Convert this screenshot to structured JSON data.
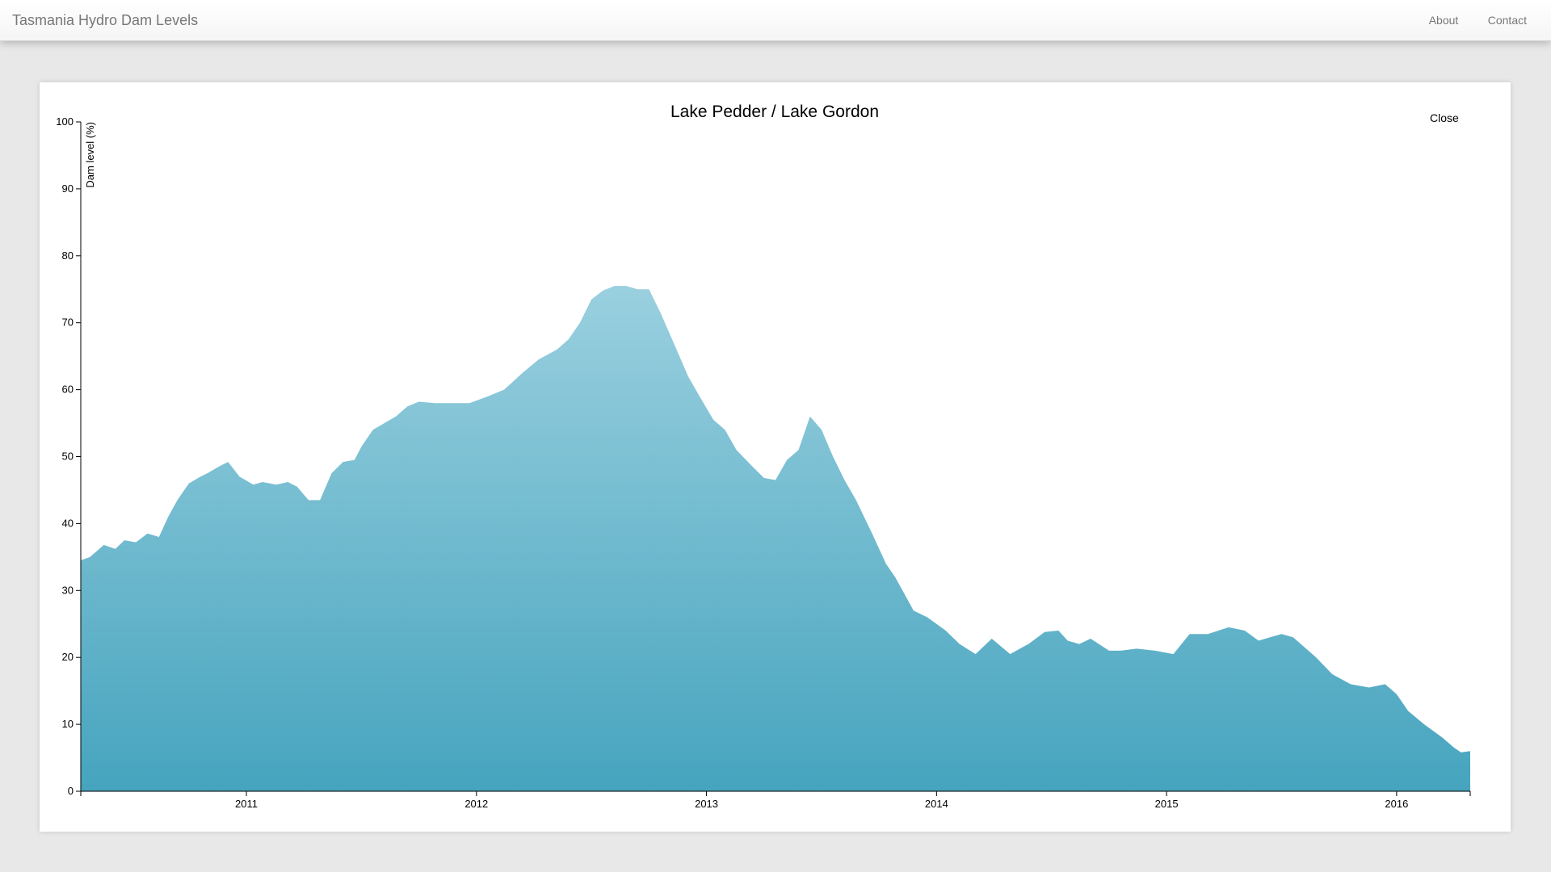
{
  "navbar": {
    "brand": "Tasmania Hydro Dam Levels",
    "links": [
      "About",
      "Contact"
    ]
  },
  "modal": {
    "close_label": "Close"
  },
  "colors": {
    "area_top": "#9ad0df",
    "area_bottom": "#46a4be",
    "axis": "#000000"
  },
  "chart_data": {
    "type": "area",
    "title": "Lake Pedder / Lake Gordon",
    "ylabel": "Dam level (%)",
    "xlabel": "",
    "ylim": [
      0,
      100
    ],
    "yticks": [
      0,
      10,
      20,
      30,
      40,
      50,
      60,
      70,
      80,
      90,
      100
    ],
    "xlim": [
      2010.28,
      2016.32
    ],
    "xticks": [
      2011,
      2012,
      2013,
      2014,
      2015,
      2016
    ],
    "xtick_labels": [
      "2011",
      "2012",
      "2013",
      "2014",
      "2015",
      "2016"
    ],
    "grid": false,
    "series": [
      {
        "x": [
          2010.28,
          2010.32,
          2010.38,
          2010.43,
          2010.47,
          2010.52,
          2010.57,
          2010.62,
          2010.66,
          2010.7,
          2010.75,
          2010.8,
          2010.83,
          2010.88,
          2010.92,
          2010.97,
          2011.03,
          2011.07,
          2011.13,
          2011.18,
          2011.22,
          2011.27,
          2011.32,
          2011.37,
          2011.42,
          2011.47,
          2011.5,
          2011.55,
          2011.6,
          2011.65,
          2011.7,
          2011.75,
          2011.82,
          2011.9,
          2011.97,
          2012.05,
          2012.12,
          2012.2,
          2012.27,
          2012.35,
          2012.4,
          2012.45,
          2012.5,
          2012.55,
          2012.6,
          2012.65,
          2012.7,
          2012.75,
          2012.8,
          2012.87,
          2012.92,
          2012.97,
          2013.03,
          2013.08,
          2013.13,
          2013.2,
          2013.25,
          2013.3,
          2013.35,
          2013.4,
          2013.45,
          2013.5,
          2013.55,
          2013.6,
          2013.65,
          2013.72,
          2013.78,
          2013.82,
          2013.86,
          2013.9,
          2013.96,
          2014.04,
          2014.1,
          2014.17,
          2014.24,
          2014.32,
          2014.4,
          2014.47,
          2014.53,
          2014.57,
          2014.62,
          2014.67,
          2014.75,
          2014.8,
          2014.87,
          2014.95,
          2015.03,
          2015.1,
          2015.18,
          2015.27,
          2015.34,
          2015.4,
          2015.45,
          2015.5,
          2015.55,
          2015.6,
          2015.65,
          2015.72,
          2015.8,
          2015.88,
          2015.95,
          2016.0,
          2016.05,
          2016.12,
          2016.2,
          2016.25,
          2016.28,
          2016.32
        ],
        "values": [
          34.5,
          35.0,
          36.8,
          36.2,
          37.5,
          37.2,
          38.5,
          38.0,
          41.0,
          43.5,
          46.0,
          47.0,
          47.5,
          48.5,
          49.2,
          47.0,
          45.8,
          46.2,
          45.8,
          46.2,
          45.5,
          43.5,
          43.5,
          47.5,
          49.2,
          49.5,
          51.5,
          54.0,
          55.0,
          56.0,
          57.5,
          58.2,
          58.0,
          58.0,
          58.0,
          59.0,
          60.0,
          62.5,
          64.5,
          66.0,
          67.5,
          70.0,
          73.5,
          74.8,
          75.5,
          75.5,
          75.0,
          75.0,
          71.5,
          66.0,
          62.0,
          59.0,
          55.5,
          54.0,
          51.0,
          48.5,
          46.8,
          46.5,
          49.5,
          51.0,
          56.0,
          54.0,
          50.0,
          46.5,
          43.5,
          38.5,
          34.0,
          32.0,
          29.5,
          27.0,
          26.0,
          24.0,
          22.0,
          20.5,
          22.8,
          20.5,
          22.0,
          23.8,
          24.0,
          22.5,
          22.0,
          22.8,
          21.0,
          21.0,
          21.3,
          21.0,
          20.5,
          23.5,
          23.5,
          24.5,
          24.0,
          22.5,
          23.0,
          23.5,
          23.0,
          21.5,
          20.0,
          17.5,
          16.0,
          15.5,
          16.0,
          14.5,
          12.0,
          10.0,
          8.0,
          6.5,
          5.8,
          6.0
        ]
      }
    ]
  }
}
